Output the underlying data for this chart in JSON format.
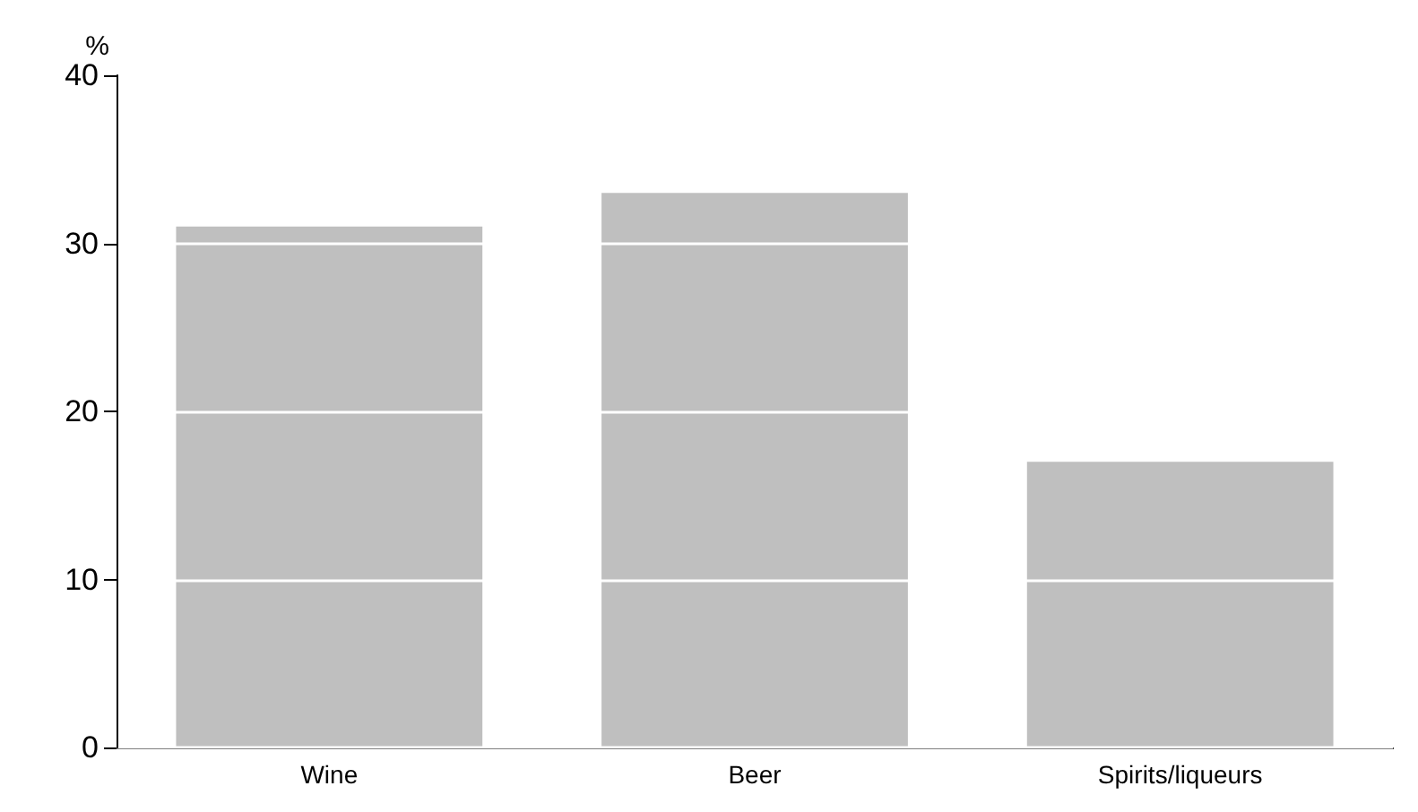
{
  "chart_data": {
    "type": "bar",
    "ylabel": "%",
    "categories": [
      "Wine",
      "Beer",
      "Spirits/liqueurs"
    ],
    "values": [
      31,
      33,
      17
    ],
    "color": "#bfbfbf",
    "ylim": [
      0,
      40
    ],
    "yticks": [
      0,
      10,
      20,
      30,
      40
    ],
    "grid": "y"
  }
}
